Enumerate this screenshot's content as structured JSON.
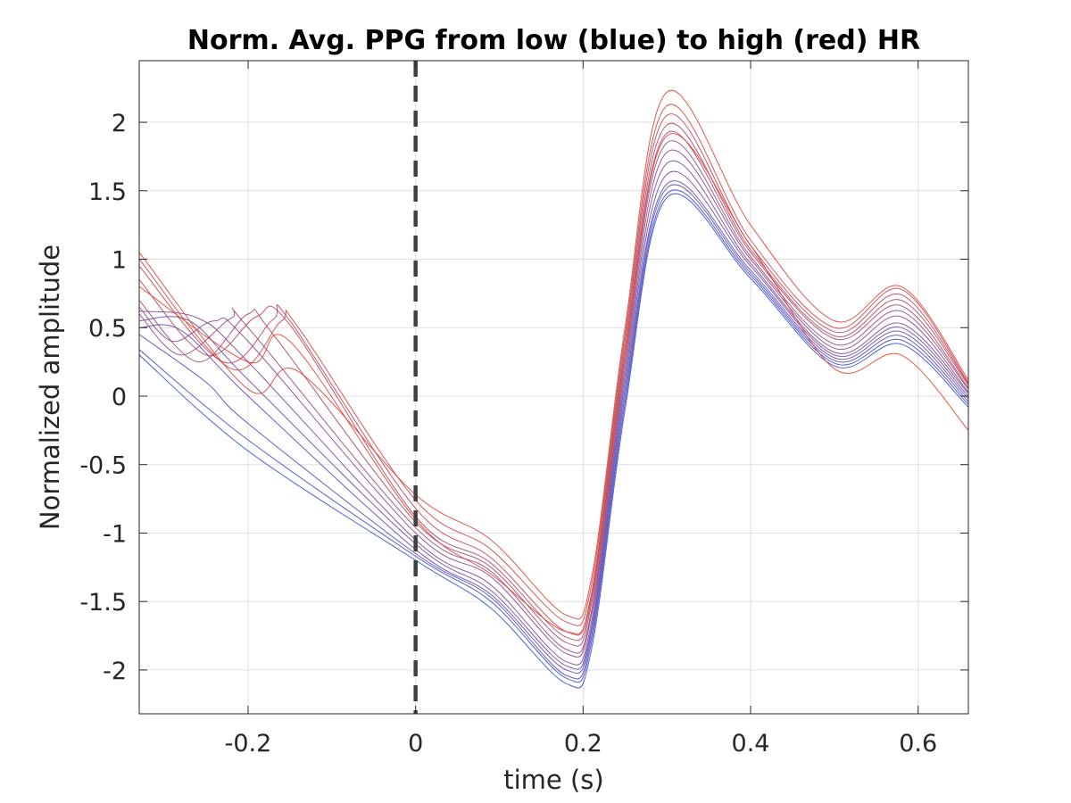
{
  "chart_data": {
    "type": "line",
    "title": "Norm. Avg. PPG from low (blue) to high (red) HR",
    "xlabel": "time (s)",
    "ylabel": "Normalized amplitude",
    "xlim": [
      -0.33,
      0.66
    ],
    "ylim": [
      -2.32,
      2.45
    ],
    "xticks": [
      -0.2,
      0,
      0.2,
      0.4,
      0.6
    ],
    "xtick_labels": [
      "-0.2",
      "0",
      "0.2",
      "0.4",
      "0.6"
    ],
    "yticks": [
      -2,
      -1.5,
      -1,
      -0.5,
      0,
      0.5,
      1,
      1.5,
      2
    ],
    "ytick_labels": [
      "-2",
      "-1.5",
      "-1",
      "-0.5",
      "0",
      "0.5",
      "1",
      "1.5",
      "2"
    ],
    "grid": true,
    "reference_line": {
      "x": 0,
      "style": "dashed",
      "color": "#404040"
    },
    "color_low": "#3b4fd8",
    "color_high": "#e8452f",
    "series": [
      {
        "x": [
          -0.33,
          -0.2,
          0.0,
          0.09,
          0.18,
          0.21,
          0.25,
          0.3,
          0.4,
          0.5,
          0.58,
          0.66
        ],
        "y": [
          0.3,
          -0.4,
          -1.2,
          -1.55,
          -2.1,
          -1.85,
          -0.1,
          1.45,
          0.86,
          0.22,
          0.38,
          -0.08
        ]
      },
      {
        "x": [
          -0.33,
          -0.2,
          0.0,
          0.09,
          0.18,
          0.21,
          0.25,
          0.3,
          0.4,
          0.5,
          0.58,
          0.66
        ],
        "y": [
          0.34,
          -0.32,
          -1.17,
          -1.5,
          -2.06,
          -1.8,
          -0.05,
          1.48,
          0.88,
          0.24,
          0.41,
          -0.06
        ]
      },
      {
        "x": [
          -0.33,
          -0.25,
          -0.2,
          0.0,
          0.09,
          0.18,
          0.21,
          0.25,
          0.3,
          0.4,
          0.5,
          0.58,
          0.66
        ],
        "y": [
          0.45,
          0.1,
          -0.2,
          -1.15,
          -1.47,
          -2.04,
          -1.76,
          0.0,
          1.52,
          0.9,
          0.26,
          0.44,
          -0.04
        ]
      },
      {
        "x": [
          -0.33,
          -0.28,
          -0.2,
          0.0,
          0.09,
          0.18,
          0.21,
          0.25,
          0.3,
          0.4,
          0.5,
          0.58,
          0.66
        ],
        "y": [
          0.5,
          0.48,
          0.0,
          -1.12,
          -1.45,
          -2.0,
          -1.72,
          0.05,
          1.55,
          0.92,
          0.28,
          0.47,
          -0.02
        ]
      },
      {
        "x": [
          -0.33,
          -0.27,
          -0.2,
          0.0,
          0.09,
          0.18,
          0.21,
          0.25,
          0.3,
          0.4,
          0.5,
          0.58,
          0.66
        ],
        "y": [
          0.55,
          0.55,
          0.12,
          -1.08,
          -1.42,
          -1.97,
          -1.69,
          0.1,
          1.62,
          0.95,
          0.3,
          0.5,
          0.0
        ]
      },
      {
        "x": [
          -0.33,
          -0.26,
          -0.2,
          0.0,
          0.09,
          0.18,
          0.21,
          0.25,
          0.3,
          0.4,
          0.5,
          0.58,
          0.66
        ],
        "y": [
          0.62,
          0.57,
          0.25,
          -1.05,
          -1.38,
          -1.94,
          -1.65,
          0.15,
          1.7,
          0.97,
          0.32,
          0.53,
          0.02
        ]
      },
      {
        "x": [
          -0.33,
          -0.29,
          -0.24,
          -0.2,
          0.0,
          0.09,
          0.18,
          0.21,
          0.25,
          0.3,
          0.4,
          0.5,
          0.58,
          0.66
        ],
        "y": [
          0.65,
          0.4,
          0.55,
          0.4,
          -1.0,
          -1.32,
          -1.88,
          -1.6,
          0.2,
          1.78,
          1.0,
          0.35,
          0.58,
          0.03
        ]
      },
      {
        "x": [
          -0.33,
          -0.28,
          -0.22,
          -0.2,
          0.0,
          0.09,
          0.18,
          0.21,
          0.25,
          0.3,
          0.4,
          0.5,
          0.58,
          0.66
        ],
        "y": [
          0.6,
          0.3,
          0.57,
          0.5,
          -0.96,
          -1.28,
          -1.85,
          -1.57,
          0.25,
          1.85,
          1.02,
          0.38,
          0.62,
          0.05
        ]
      },
      {
        "x": [
          -0.33,
          -0.26,
          -0.2,
          -0.17,
          0.0,
          0.09,
          0.18,
          0.21,
          0.25,
          0.3,
          0.4,
          0.5,
          0.58,
          0.66
        ],
        "y": [
          0.7,
          0.25,
          0.6,
          0.45,
          -0.92,
          -1.25,
          -1.8,
          -1.52,
          0.3,
          1.92,
          1.05,
          0.42,
          0.66,
          0.06
        ]
      },
      {
        "x": [
          -0.33,
          -0.25,
          -0.19,
          -0.15,
          0.0,
          0.09,
          0.18,
          0.21,
          0.25,
          0.3,
          0.4,
          0.5,
          0.58,
          0.66
        ],
        "y": [
          0.85,
          0.3,
          0.58,
          0.52,
          -0.88,
          -1.22,
          -1.76,
          -1.48,
          0.35,
          1.98,
          1.07,
          0.44,
          0.7,
          0.08
        ]
      },
      {
        "x": [
          -0.33,
          -0.23,
          -0.17,
          -0.15,
          0.0,
          0.09,
          0.18,
          0.21,
          0.25,
          0.3,
          0.4,
          0.5,
          0.58,
          0.66
        ],
        "y": [
          0.95,
          0.25,
          0.56,
          0.55,
          -0.82,
          -1.18,
          -1.72,
          -1.44,
          0.4,
          2.05,
          1.1,
          0.47,
          0.74,
          0.09
        ]
      },
      {
        "x": [
          -0.33,
          -0.22,
          -0.16,
          -0.14,
          0.0,
          0.09,
          0.18,
          0.21,
          0.25,
          0.3,
          0.4,
          0.5,
          0.58,
          0.66
        ],
        "y": [
          1.0,
          0.2,
          0.55,
          0.5,
          -0.76,
          -1.12,
          -1.65,
          -1.38,
          0.45,
          2.12,
          1.14,
          0.5,
          0.78,
          0.1
        ]
      },
      {
        "x": [
          -0.33,
          -0.2,
          -0.14,
          0.0,
          0.09,
          0.18,
          0.21,
          0.25,
          0.3,
          0.4,
          0.5,
          0.58,
          0.66
        ],
        "y": [
          1.05,
          0.05,
          0.18,
          -0.72,
          -1.05,
          -1.6,
          -1.33,
          0.5,
          2.22,
          1.25,
          0.55,
          0.8,
          0.12
        ]
      },
      {
        "x": [
          -0.33,
          -0.2,
          -0.15,
          0.0,
          0.09,
          0.18,
          0.21,
          0.25,
          0.3,
          0.4,
          0.5,
          0.58,
          0.66
        ],
        "y": [
          0.8,
          0.25,
          0.4,
          -0.9,
          -1.3,
          -1.72,
          -1.45,
          0.3,
          1.9,
          1.1,
          0.2,
          0.3,
          -0.25
        ]
      }
    ]
  }
}
